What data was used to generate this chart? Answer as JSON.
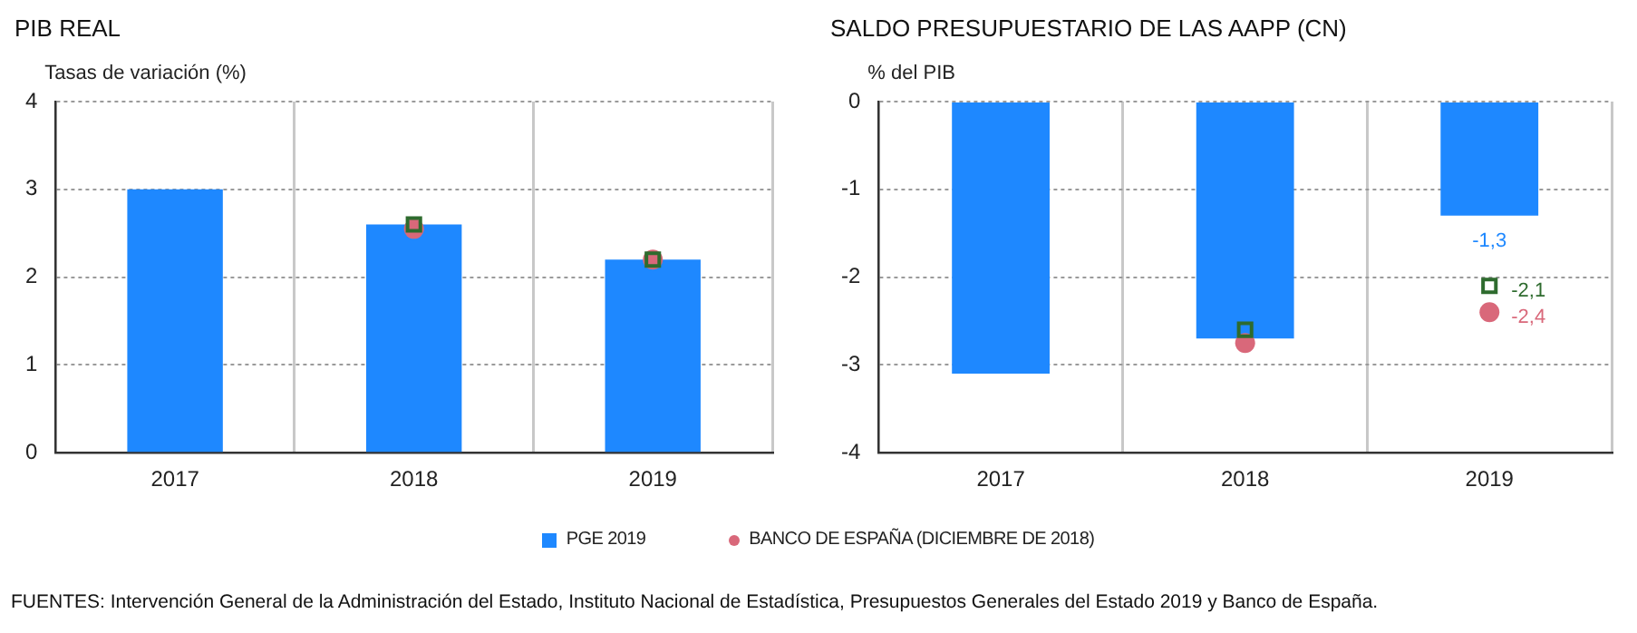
{
  "chart_data": [
    {
      "type": "bar",
      "title": "PIB REAL",
      "ylabel": "Tasas de variación (%)",
      "categories": [
        "2017",
        "2018",
        "2019"
      ],
      "series": [
        {
          "name": "PGE 2019",
          "color": "#1e88ff",
          "values": [
            3.0,
            2.6,
            2.2
          ]
        },
        {
          "type": "scatter",
          "name": "BANCO DE ESPAÑA (DICIEMBRE DE 2018)",
          "color": "#d9687a",
          "marker": "circle",
          "values": [
            null,
            2.55,
            2.2
          ]
        },
        {
          "type": "scatter",
          "color": "#2e6b2e",
          "marker": "square",
          "values": [
            null,
            2.6,
            2.2
          ]
        }
      ],
      "ylim": [
        0,
        4
      ],
      "yticks": [
        0,
        1,
        2,
        3,
        4
      ],
      "grid": true,
      "legend": "bottom",
      "annotations": [
        "FUENTES: Intervención General de la Administración del Estado, Instituto Nacional de Estadística, Presupuestos Generales del Estado 2019 y Banco de España."
      ]
    },
    {
      "type": "bar",
      "title": "SALDO PRESUPUESTARIO DE LAS AAPP (CN)",
      "ylabel": "% del PIB",
      "categories": [
        "2017",
        "2018",
        "2019"
      ],
      "series": [
        {
          "color": "#1e88ff",
          "values": [
            -3.1,
            -2.7,
            -1.3
          ],
          "value_labels": [
            null,
            null,
            "-1,3"
          ]
        },
        {
          "type": "scatter",
          "color": "#d9687a",
          "marker": "circle",
          "values": [
            null,
            -2.75,
            -2.4
          ],
          "value_labels": [
            null,
            null,
            "-2,4"
          ]
        },
        {
          "type": "scatter",
          "color": "#2e6b2e",
          "marker": "square",
          "values": [
            null,
            -2.6,
            -2.1
          ],
          "value_labels": [
            null,
            null,
            "-2,1"
          ]
        }
      ],
      "ylim": [
        -4,
        0
      ],
      "yticks": [
        -4,
        -3,
        -2,
        -1,
        0
      ],
      "grid": true
    }
  ]
}
